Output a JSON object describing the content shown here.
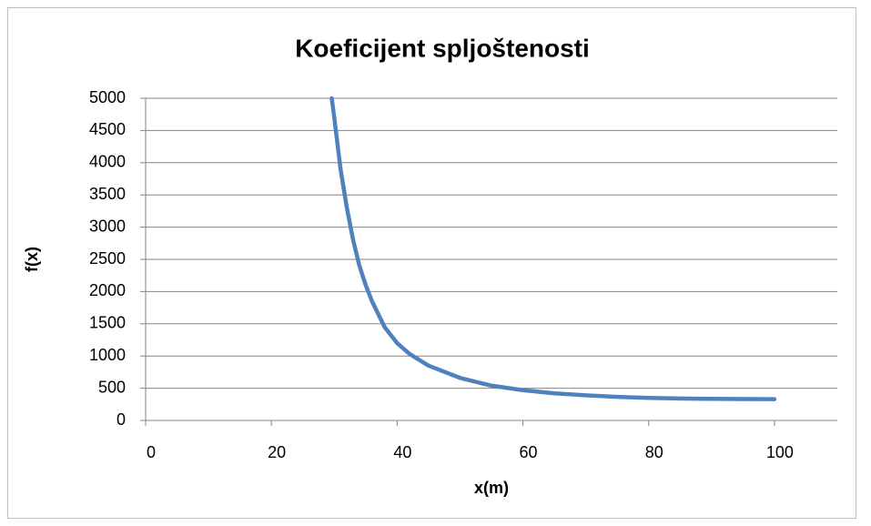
{
  "chart_data": {
    "type": "line",
    "title": "Koeficijent spljoštenosti",
    "x_label": "x(m)",
    "y_label": "f(x)",
    "x": [
      29.6,
      30,
      31,
      32,
      33,
      34,
      35,
      36,
      38,
      40,
      42,
      45,
      50,
      55,
      60,
      65,
      70,
      75,
      80,
      85,
      90,
      95,
      100
    ],
    "series": [
      {
        "name": "f(x)",
        "color": "#4f81bd",
        "values": [
          5000,
          4700,
          3900,
          3300,
          2800,
          2400,
          2100,
          1850,
          1450,
          1200,
          1030,
          850,
          660,
          540,
          470,
          420,
          390,
          365,
          350,
          340,
          335,
          332,
          330
        ]
      }
    ],
    "xlim": [
      0,
      110
    ],
    "xticks": [
      0,
      20,
      40,
      60,
      80,
      100
    ],
    "ylim": [
      0,
      5000
    ],
    "yticks": [
      0,
      500,
      1000,
      1500,
      2000,
      2500,
      3000,
      3500,
      4000,
      4500,
      5000
    ],
    "grid": true
  }
}
